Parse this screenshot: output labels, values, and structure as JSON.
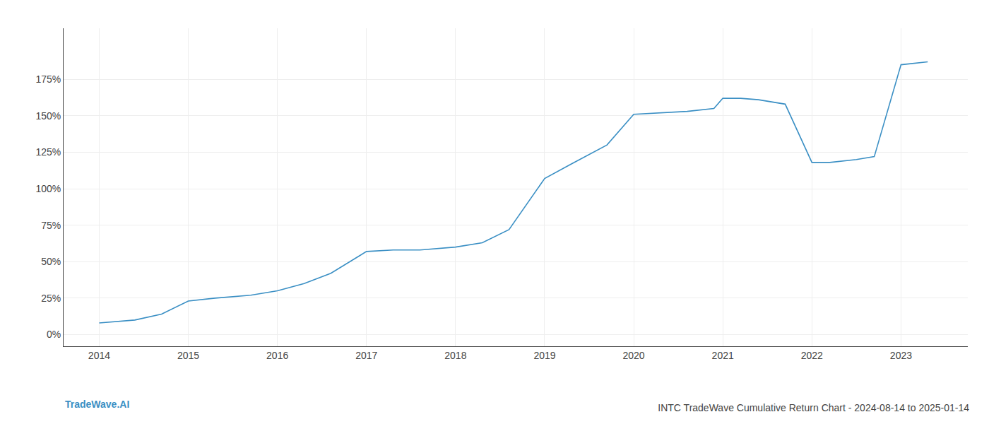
{
  "chart_data": {
    "type": "line",
    "title": "INTC TradeWave Cumulative Return Chart - 2024-08-14 to 2025-01-14",
    "annotations": [
      "TradeWave.AI"
    ],
    "x": [
      2014.0,
      2014.4,
      2014.7,
      2015.0,
      2015.3,
      2015.7,
      2016.0,
      2016.3,
      2016.6,
      2017.0,
      2017.3,
      2017.6,
      2018.0,
      2018.3,
      2018.6,
      2019.0,
      2019.3,
      2019.7,
      2020.0,
      2020.3,
      2020.6,
      2020.9,
      2021.0,
      2021.2,
      2021.4,
      2021.7,
      2022.0,
      2022.2,
      2022.5,
      2022.7,
      2023.0,
      2023.3
    ],
    "values": [
      8,
      10,
      14,
      23,
      25,
      27,
      30,
      35,
      42,
      57,
      58,
      58,
      60,
      63,
      72,
      107,
      117,
      130,
      151,
      152,
      153,
      155,
      162,
      162,
      161,
      158,
      118,
      118,
      120,
      122,
      185,
      187
    ],
    "color": "#3a8fc4",
    "xlim": [
      2013.6,
      2023.75
    ],
    "ylim": [
      -8,
      210
    ],
    "xticks": [
      2014,
      2015,
      2016,
      2017,
      2018,
      2019,
      2020,
      2021,
      2022,
      2023
    ],
    "yticks": [
      {
        "value": 0,
        "label": "0%"
      },
      {
        "value": 25,
        "label": "25%"
      },
      {
        "value": 50,
        "label": "50%"
      },
      {
        "value": 75,
        "label": "75%"
      },
      {
        "value": 100,
        "label": "100%"
      },
      {
        "value": 125,
        "label": "125%"
      },
      {
        "value": 150,
        "label": "150%"
      },
      {
        "value": 175,
        "label": "175%"
      }
    ],
    "grid": true
  }
}
